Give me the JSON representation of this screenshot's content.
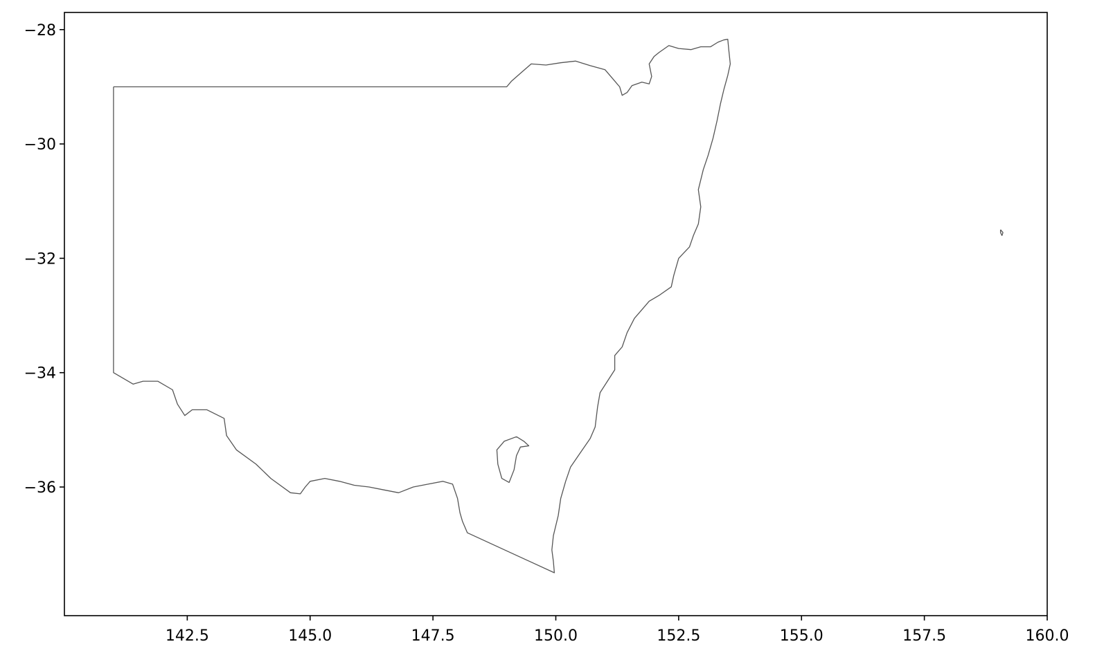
{
  "chart_data": {
    "type": "map",
    "title": "",
    "xlabel": "",
    "ylabel": "",
    "xlim": [
      140.0,
      160.0
    ],
    "ylim": [
      -38.25,
      -27.7
    ],
    "x_ticks": [
      {
        "value": 142.5,
        "label": "142.5"
      },
      {
        "value": 145.0,
        "label": "145.0"
      },
      {
        "value": 147.5,
        "label": "147.5"
      },
      {
        "value": 150.0,
        "label": "150.0"
      },
      {
        "value": 152.5,
        "label": "152.5"
      },
      {
        "value": 155.0,
        "label": "155.0"
      },
      {
        "value": 157.5,
        "label": "157.5"
      },
      {
        "value": 160.0,
        "label": "160.0"
      }
    ],
    "y_ticks": [
      {
        "value": -28,
        "label": "−28"
      },
      {
        "value": -30,
        "label": "−30"
      },
      {
        "value": -32,
        "label": "−32"
      },
      {
        "value": -34,
        "label": "−34"
      },
      {
        "value": -36,
        "label": "−36"
      }
    ],
    "outline_color": "#555555",
    "axis_color": "#000000",
    "grid": false,
    "shapes": [
      {
        "name": "mainland",
        "points": [
          [
            141.0,
            -29.0
          ],
          [
            149.0,
            -29.0
          ],
          [
            149.1,
            -28.9
          ],
          [
            149.3,
            -28.75
          ],
          [
            149.5,
            -28.6
          ],
          [
            149.8,
            -28.62
          ],
          [
            150.1,
            -28.58
          ],
          [
            150.4,
            -28.55
          ],
          [
            150.7,
            -28.63
          ],
          [
            151.0,
            -28.7
          ],
          [
            151.15,
            -28.85
          ],
          [
            151.3,
            -29.0
          ],
          [
            151.35,
            -29.15
          ],
          [
            151.45,
            -29.1
          ],
          [
            151.55,
            -28.98
          ],
          [
            151.75,
            -28.92
          ],
          [
            151.9,
            -28.95
          ],
          [
            151.95,
            -28.82
          ],
          [
            151.9,
            -28.6
          ],
          [
            152.0,
            -28.47
          ],
          [
            152.1,
            -28.4
          ],
          [
            152.3,
            -28.28
          ],
          [
            152.5,
            -28.33
          ],
          [
            152.75,
            -28.35
          ],
          [
            152.95,
            -28.3
          ],
          [
            153.15,
            -28.3
          ],
          [
            153.3,
            -28.22
          ],
          [
            153.42,
            -28.18
          ],
          [
            153.5,
            -28.17
          ],
          [
            153.52,
            -28.35
          ],
          [
            153.55,
            -28.6
          ],
          [
            153.5,
            -28.8
          ],
          [
            153.42,
            -29.05
          ],
          [
            153.35,
            -29.3
          ],
          [
            153.28,
            -29.6
          ],
          [
            153.2,
            -29.9
          ],
          [
            153.1,
            -30.2
          ],
          [
            153.0,
            -30.45
          ],
          [
            152.9,
            -30.8
          ],
          [
            152.95,
            -31.1
          ],
          [
            152.9,
            -31.4
          ],
          [
            152.8,
            -31.6
          ],
          [
            152.72,
            -31.8
          ],
          [
            152.5,
            -32.0
          ],
          [
            152.4,
            -32.3
          ],
          [
            152.35,
            -32.5
          ],
          [
            152.1,
            -32.65
          ],
          [
            151.9,
            -32.75
          ],
          [
            151.75,
            -32.9
          ],
          [
            151.6,
            -33.05
          ],
          [
            151.45,
            -33.3
          ],
          [
            151.35,
            -33.55
          ],
          [
            151.2,
            -33.7
          ],
          [
            151.2,
            -33.95
          ],
          [
            151.05,
            -34.15
          ],
          [
            150.9,
            -34.35
          ],
          [
            150.85,
            -34.6
          ],
          [
            150.8,
            -34.95
          ],
          [
            150.7,
            -35.15
          ],
          [
            150.5,
            -35.4
          ],
          [
            150.3,
            -35.65
          ],
          [
            150.2,
            -35.9
          ],
          [
            150.1,
            -36.2
          ],
          [
            150.05,
            -36.5
          ],
          [
            149.95,
            -36.85
          ],
          [
            149.92,
            -37.1
          ],
          [
            149.95,
            -37.3
          ],
          [
            149.97,
            -37.5
          ],
          [
            148.2,
            -36.8
          ],
          [
            148.1,
            -36.6
          ],
          [
            148.05,
            -36.45
          ],
          [
            148.0,
            -36.2
          ],
          [
            147.9,
            -35.95
          ],
          [
            147.7,
            -35.9
          ],
          [
            147.4,
            -35.95
          ],
          [
            147.1,
            -36.0
          ],
          [
            146.8,
            -36.1
          ],
          [
            146.5,
            -36.05
          ],
          [
            146.2,
            -36.0
          ],
          [
            145.9,
            -35.97
          ],
          [
            145.6,
            -35.9
          ],
          [
            145.3,
            -35.85
          ],
          [
            145.0,
            -35.9
          ],
          [
            144.9,
            -36.0
          ],
          [
            144.8,
            -36.12
          ],
          [
            144.6,
            -36.1
          ],
          [
            144.2,
            -35.85
          ],
          [
            143.9,
            -35.6
          ],
          [
            143.5,
            -35.35
          ],
          [
            143.3,
            -35.1
          ],
          [
            143.25,
            -34.8
          ],
          [
            142.9,
            -34.65
          ],
          [
            142.6,
            -34.65
          ],
          [
            142.45,
            -34.75
          ],
          [
            142.3,
            -34.55
          ],
          [
            142.2,
            -34.3
          ],
          [
            141.9,
            -34.15
          ],
          [
            141.6,
            -34.15
          ],
          [
            141.4,
            -34.2
          ],
          [
            141.0,
            -34.0
          ],
          [
            141.0,
            -29.0
          ]
        ]
      },
      {
        "name": "act",
        "points": [
          [
            149.2,
            -35.12
          ],
          [
            149.35,
            -35.2
          ],
          [
            149.45,
            -35.28
          ],
          [
            149.28,
            -35.3
          ],
          [
            149.2,
            -35.45
          ],
          [
            149.15,
            -35.7
          ],
          [
            149.05,
            -35.92
          ],
          [
            148.9,
            -35.85
          ],
          [
            148.82,
            -35.6
          ],
          [
            148.8,
            -35.35
          ],
          [
            148.95,
            -35.2
          ],
          [
            149.2,
            -35.12
          ]
        ]
      },
      {
        "name": "lord-howe-island",
        "points": [
          [
            159.05,
            -31.5
          ],
          [
            159.1,
            -31.55
          ],
          [
            159.08,
            -31.6
          ],
          [
            159.05,
            -31.55
          ],
          [
            159.05,
            -31.5
          ]
        ]
      }
    ]
  }
}
